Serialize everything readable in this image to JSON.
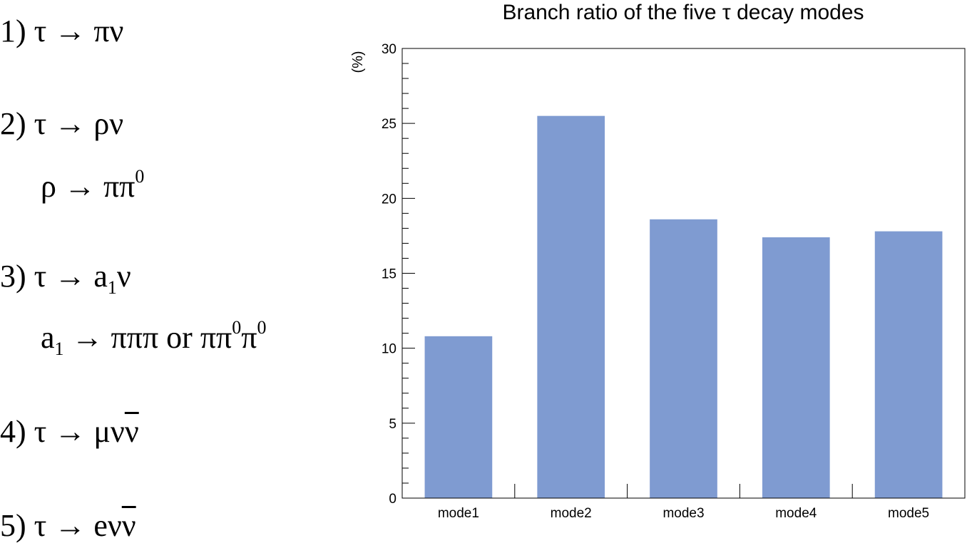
{
  "decays": [
    {
      "segments": [
        {
          "t": "1) τ → πν"
        }
      ]
    },
    {
      "segments": [
        {
          "t": "2) τ → ρν"
        }
      ]
    },
    {
      "segments": [
        {
          "t": "ρ → ππ"
        },
        {
          "t": "0",
          "s": "sup"
        }
      ]
    },
    {
      "segments": [
        {
          "t": "3) τ → a"
        },
        {
          "t": "1",
          "s": "sub"
        },
        {
          "t": "ν"
        }
      ]
    },
    {
      "segments": [
        {
          "t": "a"
        },
        {
          "t": "1",
          "s": "sub"
        },
        {
          "t": " → πππ or ππ"
        },
        {
          "t": "0",
          "s": "sup"
        },
        {
          "t": "π"
        },
        {
          "t": "0",
          "s": "sup"
        }
      ]
    },
    {
      "segments": [
        {
          "t": "4) τ → μν"
        },
        {
          "t": "ν",
          "s": "overline"
        }
      ]
    },
    {
      "segments": [
        {
          "t": "5) τ → eν"
        },
        {
          "t": "ν",
          "s": "overline"
        }
      ]
    }
  ],
  "chart_data": {
    "type": "bar",
    "title": "Branch ratio of the five τ decay modes",
    "xlabel": "",
    "ylabel": "(%)",
    "categories": [
      "mode1",
      "mode2",
      "mode3",
      "mode4",
      "mode5"
    ],
    "values": [
      10.8,
      25.5,
      18.6,
      17.4,
      17.8
    ],
    "ylim": [
      0,
      30
    ],
    "yticks": [
      0,
      5,
      10,
      15,
      20,
      25,
      30
    ],
    "bar_color": "#7f9bd1",
    "grid": false,
    "legend": "none"
  }
}
